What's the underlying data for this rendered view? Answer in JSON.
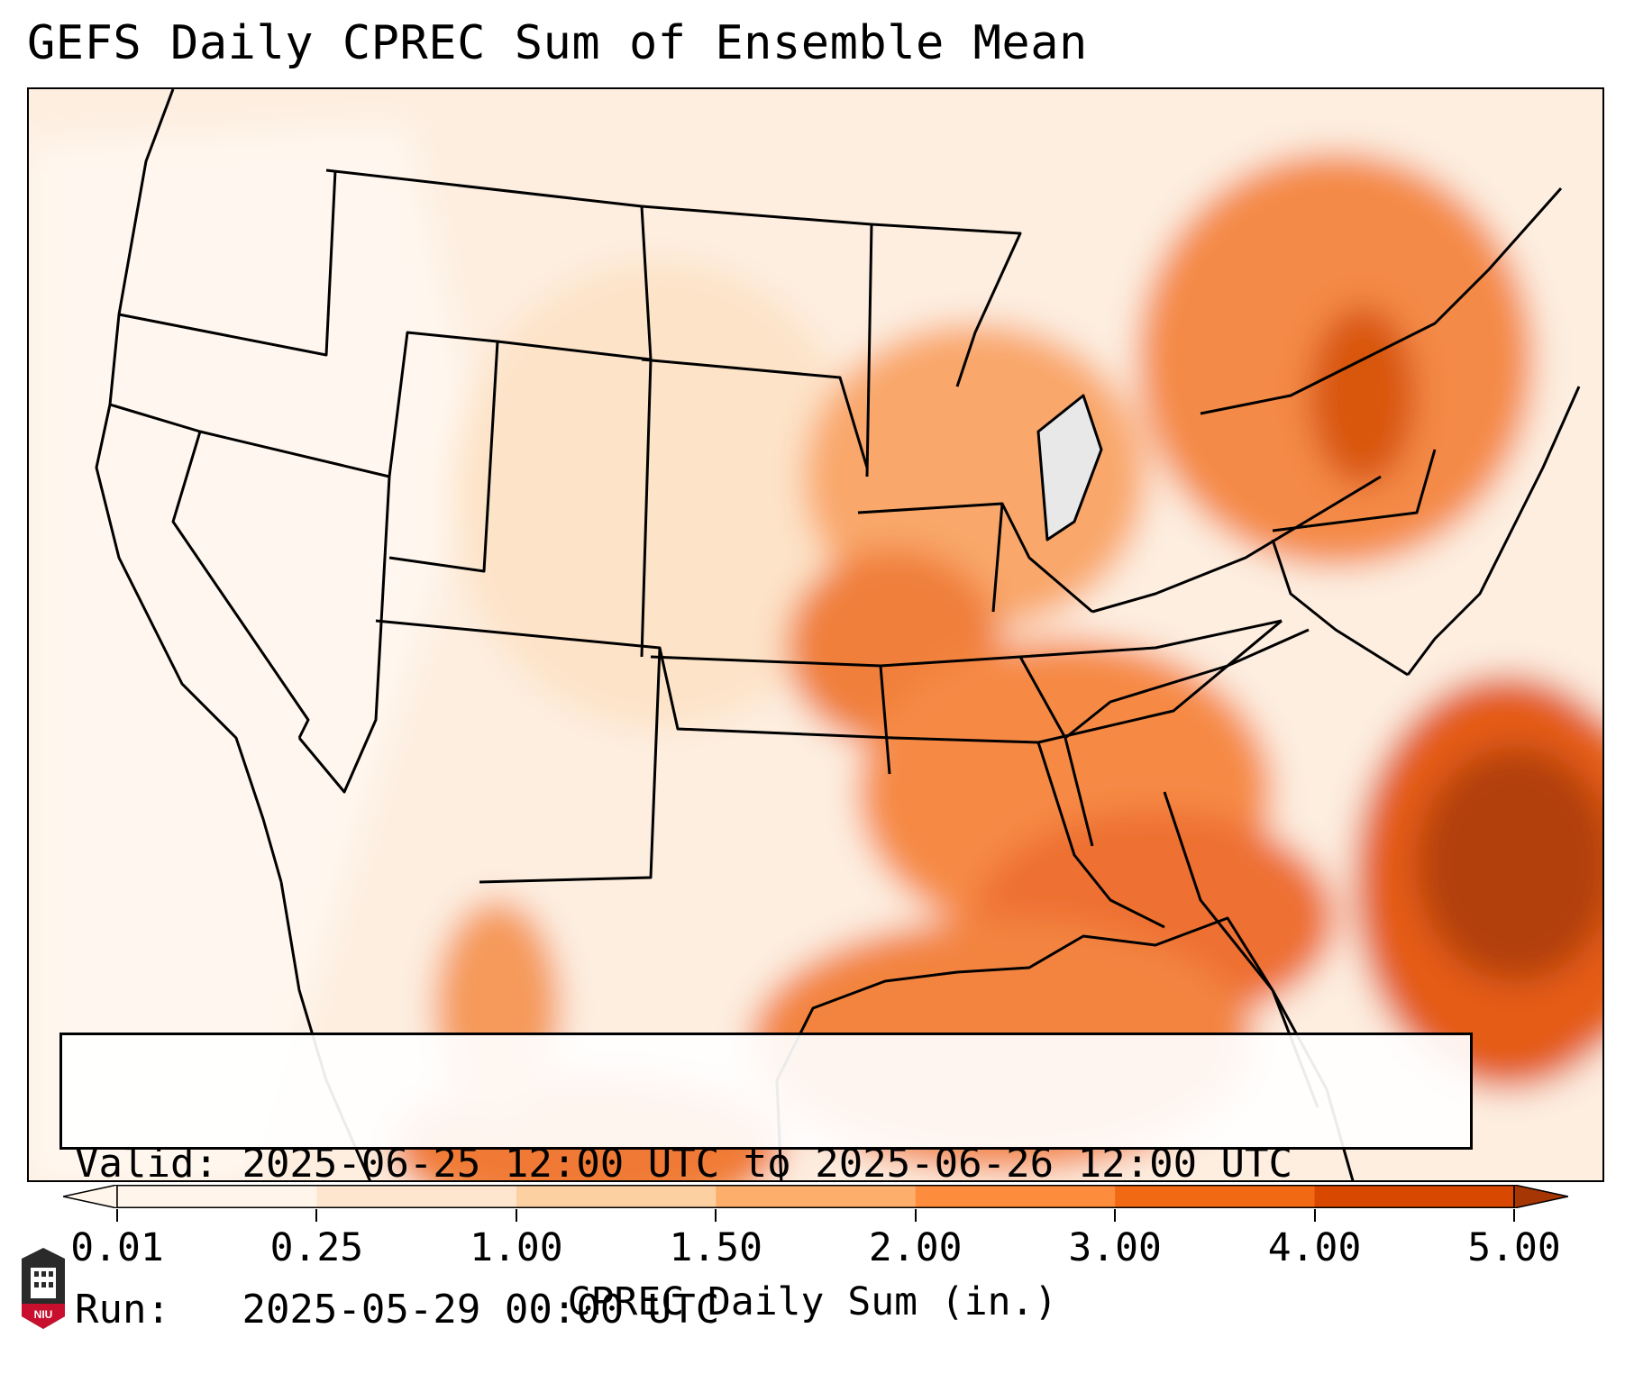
{
  "title": "GEFS Daily CPREC Sum of Ensemble Mean",
  "info": {
    "valid_label": "Valid:",
    "valid_value": "2025-06-25 12:00 UTC to 2025-06-26 12:00 UTC",
    "run_label": "Run:",
    "run_value": "2025-05-29 00:00 UTC"
  },
  "colorbar": {
    "label": "CPREC Daily Sum (in.)",
    "ticks": [
      "0.01",
      "0.25",
      "1.00",
      "1.50",
      "2.00",
      "3.00",
      "4.00",
      "5.00"
    ],
    "colors": [
      "#fff5eb",
      "#fee6ce",
      "#fdd0a2",
      "#fdae6b",
      "#fd8d3c",
      "#f16913",
      "#d94801",
      "#a63603"
    ],
    "extend": "both"
  },
  "map": {
    "region": "Contiguous United States",
    "variable": "CPREC",
    "palette": "Oranges"
  },
  "logo": {
    "text": "NIU"
  }
}
